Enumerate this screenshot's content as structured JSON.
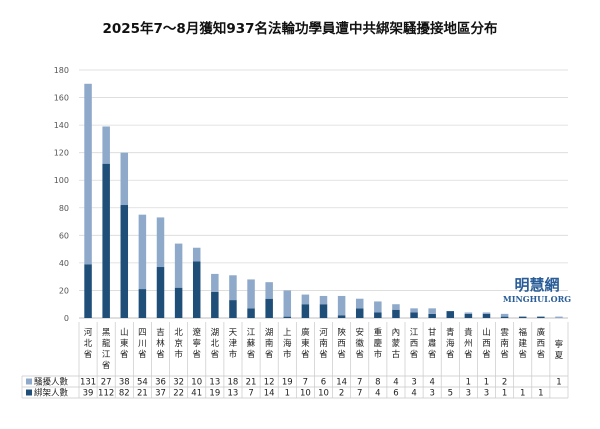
{
  "chart_data": {
    "type": "bar",
    "stacked": true,
    "title": "2025年7～8月獲知937名法輪功學員遭中共綁架騷擾接地區分布",
    "categories": [
      "河北省",
      "黑龍江省",
      "山東省",
      "四川省",
      "吉林省",
      "北京市",
      "遼寧省",
      "湖北省",
      "天津市",
      "江蘇省",
      "湖南省",
      "上海市",
      "廣東省",
      "河南省",
      "陝西省",
      "安徽省",
      "重慶市",
      "內蒙古",
      "江西省",
      "甘肅省",
      "青海省",
      "貴州省",
      "山西省",
      "雲南省",
      "福建省",
      "廣西省",
      "寧夏"
    ],
    "series": [
      {
        "name": "綁架人數",
        "color": "#1f4e79",
        "values": [
          39,
          112,
          82,
          21,
          37,
          22,
          41,
          19,
          13,
          7,
          14,
          1,
          10,
          10,
          2,
          7,
          4,
          6,
          4,
          3,
          5,
          3,
          3,
          1,
          1,
          1,
          0
        ]
      },
      {
        "name": "騷擾人數",
        "color": "#8ea9c9",
        "values": [
          131,
          27,
          38,
          54,
          36,
          32,
          10,
          13,
          18,
          21,
          12,
          19,
          7,
          6,
          14,
          7,
          8,
          4,
          3,
          4,
          0,
          1,
          1,
          2,
          0,
          0,
          1
        ]
      }
    ],
    "table_rows": [
      {
        "label": "騷擾人數",
        "cells": [
          "131",
          "27",
          "38",
          "54",
          "36",
          "32",
          "10",
          "13",
          "18",
          "21",
          "12",
          "19",
          "7",
          "6",
          "14",
          "7",
          "8",
          "4",
          "3",
          "4",
          "",
          "1",
          "1",
          "2",
          "",
          "",
          "1"
        ]
      },
      {
        "label": "綁架人數",
        "cells": [
          "39",
          "112",
          "82",
          "21",
          "37",
          "22",
          "41",
          "19",
          "13",
          "7",
          "14",
          "1",
          "10",
          "10",
          "2",
          "7",
          "4",
          "6",
          "4",
          "3",
          "5",
          "3",
          "3",
          "1",
          "1",
          "1",
          ""
        ]
      }
    ],
    "y_ticks": [
      "0",
      "20",
      "40",
      "60",
      "80",
      "100",
      "120",
      "140",
      "160",
      "180"
    ],
    "ylim": [
      0,
      180
    ],
    "grid": true
  },
  "watermark": {
    "cn": "明慧網",
    "en": "MINGHUI.ORG"
  }
}
